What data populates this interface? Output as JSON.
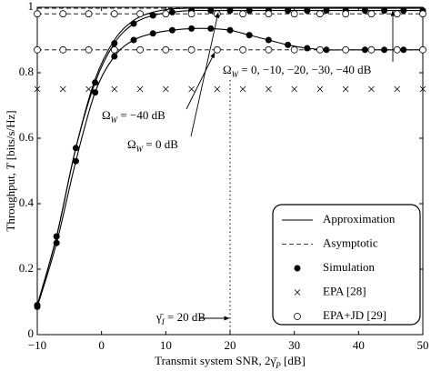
{
  "chart_data": {
    "type": "line",
    "x_label": [
      {
        "text": "Transmit system SNR, 2γ̄"
      },
      {
        "text": "P",
        "sub": true
      },
      {
        "text": " [dB]"
      }
    ],
    "y_label": [
      {
        "text": "Throughput, "
      },
      {
        "text": "T",
        "italic": true
      },
      {
        "text": " [bits/s/Hz]"
      }
    ],
    "xlim": [
      -10,
      50
    ],
    "xticks": [
      {
        "value": -10,
        "label": "−10"
      },
      0,
      10,
      20,
      30,
      40,
      50
    ],
    "ylim": [
      0,
      1
    ],
    "yticks": [
      0,
      0.2,
      0.4,
      0.6,
      0.8,
      1
    ],
    "grid": false,
    "legend": "lower right",
    "vline": 20,
    "annotations": [
      [
        {
          "text": "Ω"
        },
        {
          "text": "W",
          "sub": true
        },
        {
          "text": " = 0, −10, −20, −30, −40 dB"
        }
      ],
      [
        {
          "text": "Ω"
        },
        {
          "text": "W",
          "sub": true
        },
        {
          "text": " = −40 dB"
        }
      ],
      [
        {
          "text": "Ω"
        },
        {
          "text": "W",
          "sub": true
        },
        {
          "text": " = 0 dB"
        }
      ],
      [
        {
          "text": "γ̄"
        },
        {
          "text": "I",
          "sub": true
        },
        {
          "text": " = 20 dB"
        }
      ]
    ],
    "series": [
      {
        "name": "Approximation",
        "style": "solid",
        "color": "#000000",
        "x": [
          -10,
          -7,
          -4,
          -1,
          2,
          5,
          8,
          11,
          14,
          17,
          20,
          23,
          26,
          29,
          32,
          35,
          38,
          41,
          44,
          47,
          50
        ],
        "curves": [
          [
            0.085,
            0.28,
            0.53,
            0.74,
            0.85,
            0.9,
            0.92,
            0.93,
            0.935,
            0.935,
            0.93,
            0.915,
            0.9,
            0.885,
            0.875,
            0.87,
            0.87,
            0.87,
            0.87,
            0.87,
            0.87
          ],
          [
            0.09,
            0.3,
            0.57,
            0.77,
            0.89,
            0.95,
            0.975,
            0.985,
            0.99,
            0.99,
            0.99,
            0.99,
            0.99,
            0.99,
            0.99,
            0.99,
            0.99,
            0.99,
            0.99,
            0.99,
            0.99
          ],
          [
            0.09,
            0.3,
            0.57,
            0.78,
            0.9,
            0.96,
            0.985,
            0.995,
            0.997,
            0.997,
            0.997,
            0.997,
            0.997,
            0.997,
            0.997,
            0.997,
            0.997,
            0.997,
            0.997,
            0.997,
            0.997
          ]
        ]
      },
      {
        "name": "Asymptotic",
        "style": "dashed",
        "color": "#000000",
        "x": [
          -10,
          50
        ],
        "curves": [
          [
            0.87,
            0.87
          ],
          [
            0.98,
            0.98
          ],
          [
            0.997,
            0.997
          ]
        ]
      },
      {
        "name": "Simulation",
        "style": "filled-circle",
        "color": "#000000",
        "x": [
          -10,
          -7,
          -4,
          -1,
          2,
          5,
          8,
          11,
          14,
          17,
          20,
          23,
          26,
          29,
          32,
          35,
          38,
          41,
          44,
          47,
          50
        ],
        "curves": [
          [
            0.085,
            0.28,
            0.53,
            0.74,
            0.85,
            0.9,
            0.92,
            0.93,
            0.935,
            0.935,
            0.93,
            0.915,
            0.9,
            0.885,
            0.875,
            0.87,
            0.87,
            0.87,
            0.87,
            0.87,
            0.87
          ],
          [
            0.09,
            0.3,
            0.57,
            0.77,
            0.89,
            0.95,
            0.975,
            0.985,
            0.99,
            0.99,
            0.99,
            0.99,
            0.99,
            0.99,
            0.99,
            0.99,
            0.99,
            0.99,
            0.99,
            0.99,
            0.99
          ]
        ]
      },
      {
        "name": "EPA [28]",
        "style": "cross",
        "color": "#000000",
        "x": [
          -10,
          -6,
          -2,
          2,
          6,
          10,
          14,
          18,
          22,
          26,
          30,
          34,
          38,
          42,
          46,
          50
        ],
        "curves": [
          [
            0.75,
            0.75,
            0.75,
            0.75,
            0.75,
            0.75,
            0.75,
            0.75,
            0.75,
            0.75,
            0.75,
            0.75,
            0.75,
            0.75,
            0.75,
            0.75
          ]
        ]
      },
      {
        "name": "EPA+JD [29]",
        "style": "open-circle",
        "color": "#000000",
        "x": [
          -10,
          -6,
          -2,
          2,
          6,
          10,
          14,
          18,
          22,
          26,
          30,
          34,
          38,
          42,
          46,
          50
        ],
        "curves": [
          [
            0.87,
            0.87,
            0.87,
            0.87,
            0.87,
            0.87,
            0.87,
            0.87,
            0.87,
            0.87,
            0.87,
            0.87,
            0.87,
            0.87,
            0.87,
            0.87
          ],
          [
            0.98,
            0.98,
            0.98,
            0.98,
            0.98,
            0.98,
            0.98,
            0.98,
            0.98,
            0.98,
            0.98,
            0.98,
            0.98,
            0.98,
            0.98,
            0.98
          ]
        ]
      }
    ]
  }
}
